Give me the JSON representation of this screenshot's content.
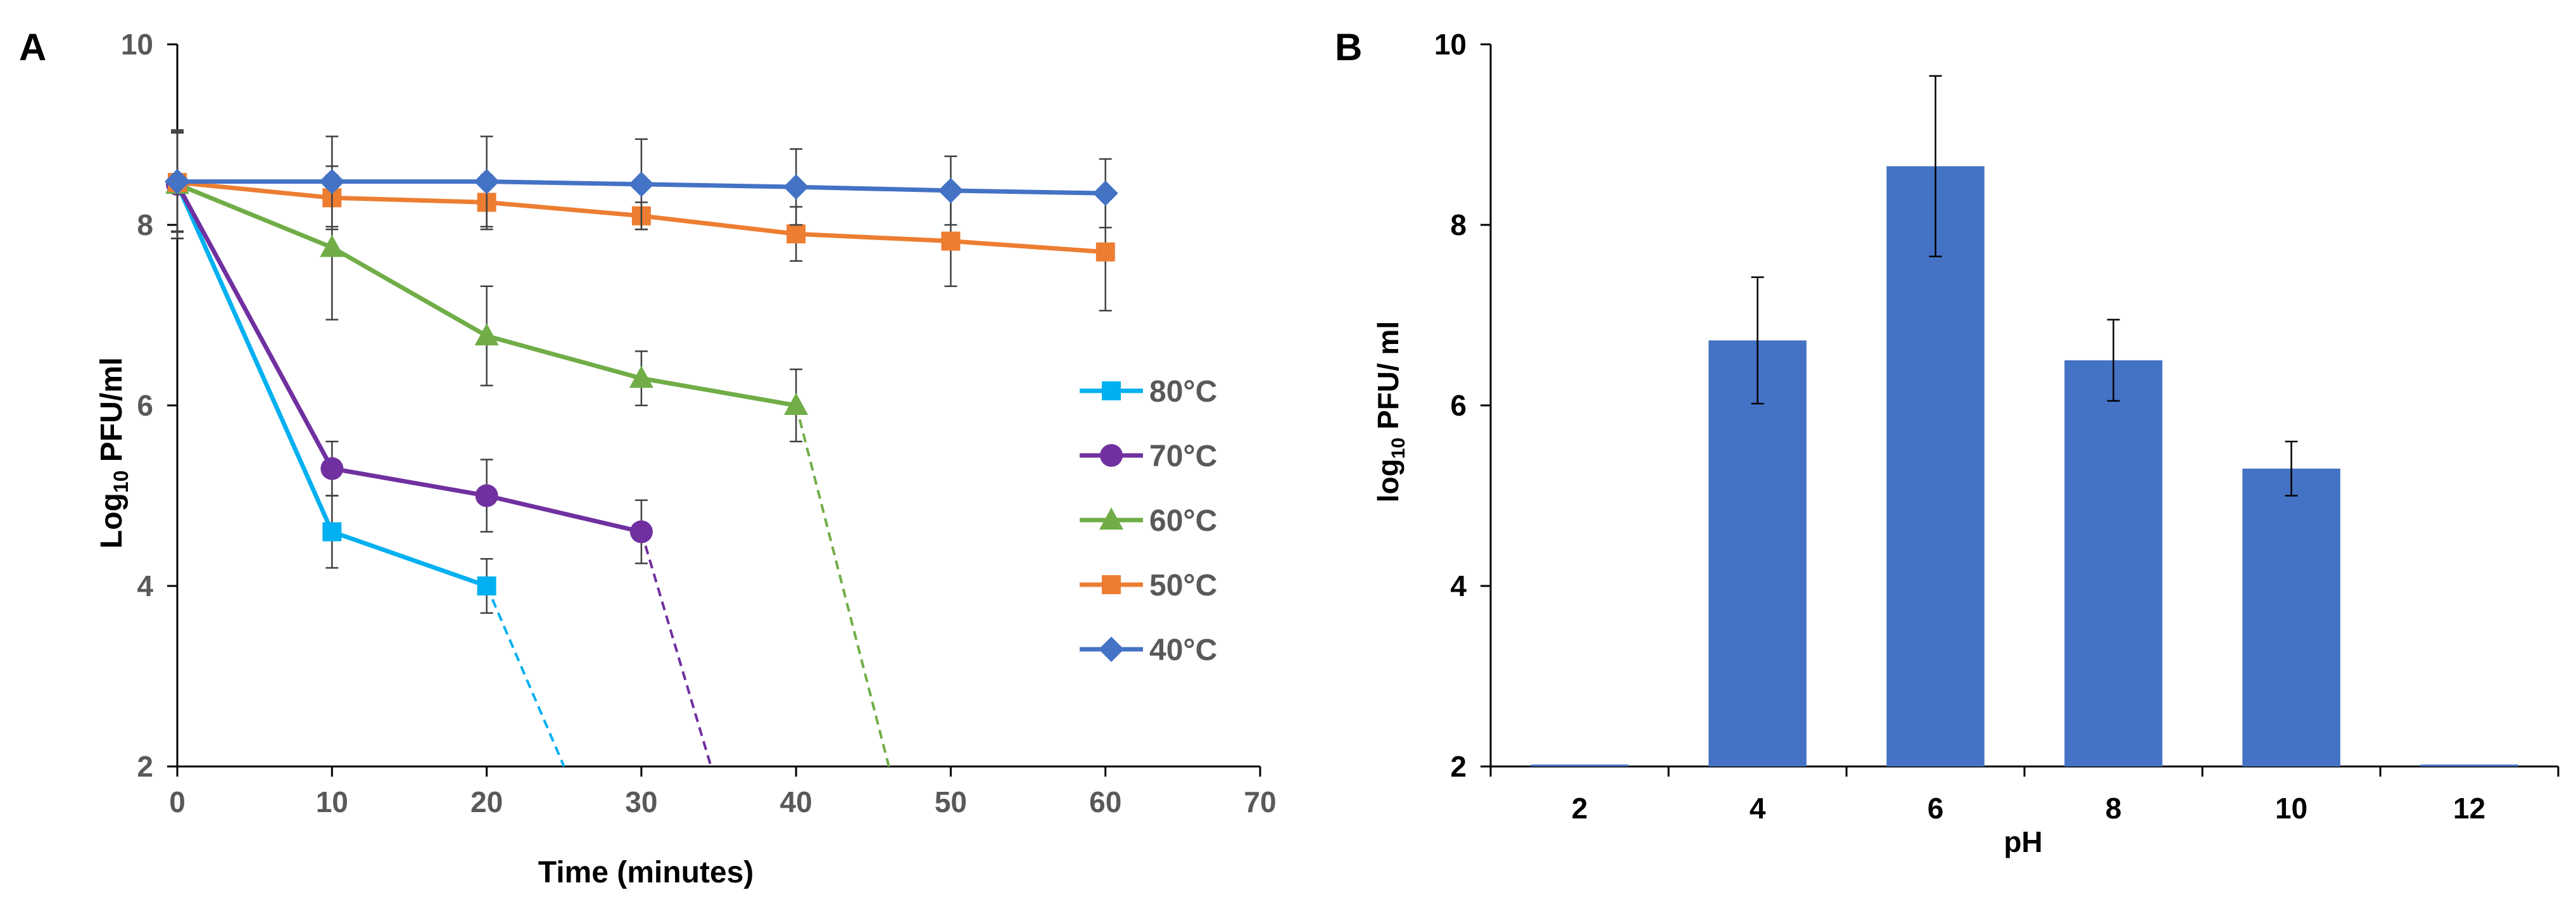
{
  "colors": {
    "axis": "#000000",
    "tick_text_a": "#595959",
    "tick_text_b": "#000000",
    "error_bar": "#404040",
    "bar_fill": "#4472C4"
  },
  "chart_data": [
    {
      "panel_label": "A",
      "type": "line",
      "title": "",
      "xlabel": "Time (minutes)",
      "ylabel": "Log",
      "ylabel_sub": "10",
      "ylabel_tail": " PFU/ml",
      "xlim": [
        0,
        70
      ],
      "ylim": [
        2,
        10
      ],
      "x_ticks": [
        0,
        10,
        20,
        30,
        40,
        50,
        60,
        70
      ],
      "x_tick_labels": [
        "0",
        "10",
        "20",
        "30",
        "40",
        "50",
        "60",
        "70"
      ],
      "y_ticks": [
        2,
        4,
        6,
        8,
        10
      ],
      "y_tick_labels": [
        "2",
        "4",
        "6",
        "8",
        "10"
      ],
      "legend_position": "right-middle",
      "series": [
        {
          "name": "80°C",
          "color": "#00B0F0",
          "marker": "square",
          "x": [
            0,
            10,
            20
          ],
          "y": [
            8.45,
            4.6,
            4.0
          ],
          "err": [
            0.6,
            0.4,
            0.3
          ],
          "drop": {
            "from": [
              20,
              4.0
            ],
            "to": [
              25,
              2
            ]
          }
        },
        {
          "name": "70°C",
          "color": "#7030A0",
          "marker": "circle",
          "x": [
            0,
            10,
            20,
            30
          ],
          "y": [
            8.45,
            5.3,
            5.0,
            4.6
          ],
          "err": [
            0.6,
            0.3,
            0.4,
            0.35
          ],
          "drop": {
            "from": [
              30,
              4.6
            ],
            "to": [
              34.5,
              2
            ]
          }
        },
        {
          "name": "60°C",
          "color": "#70AD47",
          "marker": "triangle",
          "x": [
            0,
            10,
            20,
            30,
            40
          ],
          "y": [
            8.45,
            7.75,
            6.77,
            6.3,
            6.0
          ],
          "err": [
            0.6,
            0.8,
            0.55,
            0.3,
            0.4
          ],
          "drop": {
            "from": [
              40,
              6.0
            ],
            "to": [
              46,
              2
            ]
          }
        },
        {
          "name": "50°C",
          "color": "#ED7D31",
          "marker": "square",
          "x": [
            0,
            10,
            20,
            30,
            40,
            50,
            60
          ],
          "y": [
            8.47,
            8.3,
            8.25,
            8.1,
            7.9,
            7.82,
            7.7
          ],
          "err": [
            0.55,
            0.35,
            0.3,
            0.15,
            0.3,
            0.5,
            0.65
          ]
        },
        {
          "name": "40°C",
          "color": "#4472C4",
          "marker": "diamond",
          "x": [
            0,
            10,
            20,
            30,
            40,
            50,
            60
          ],
          "y": [
            8.48,
            8.48,
            8.48,
            8.45,
            8.42,
            8.38,
            8.35
          ],
          "err": [
            0.55,
            0.5,
            0.5,
            0.5,
            0.42,
            0.38,
            0.38
          ]
        }
      ]
    },
    {
      "panel_label": "B",
      "type": "bar",
      "title": "",
      "xlabel": "pH",
      "ylabel": "log",
      "ylabel_sub": "10",
      "ylabel_tail": " PFU/ ml",
      "categories": [
        "2",
        "4",
        "6",
        "8",
        "10",
        "12"
      ],
      "values": [
        2,
        6.72,
        8.65,
        6.5,
        5.3,
        2
      ],
      "errors": [
        0,
        0.7,
        1.0,
        0.45,
        0.3,
        0
      ],
      "ylim": [
        2,
        10
      ],
      "y_ticks": [
        2,
        4,
        6,
        8,
        10
      ],
      "y_tick_labels": [
        "2",
        "4",
        "6",
        "8",
        "10"
      ]
    }
  ]
}
